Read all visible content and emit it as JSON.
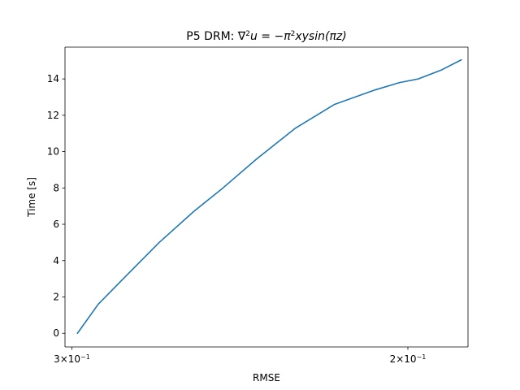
{
  "chart_data": {
    "type": "line",
    "title": "P5 DRM: ∇²u = −π²xysin(πz)",
    "title_parts": {
      "prefix": "P5 DRM: ∇",
      "sup1": "2",
      "mid": "u = −π",
      "sup2": "2",
      "suffix": "xysin(πz)"
    },
    "xlabel": "RMSE",
    "ylabel": "Time [s]",
    "x_scale": "log",
    "x_scale_direction": "inverted",
    "xlim": [
      0.3025,
      0.186
    ],
    "ylim": [
      -0.75,
      15.75
    ],
    "x_ticks": [
      {
        "value": 0.3,
        "base": "3",
        "exp": "−1"
      },
      {
        "value": 0.2,
        "base": "2",
        "exp": "−1"
      }
    ],
    "y_ticks": [
      0,
      2,
      4,
      6,
      8,
      10,
      12,
      14
    ],
    "grid": false,
    "line_color": "#1f77b4",
    "series": [
      {
        "x": [
          0.298,
          0.2906,
          0.282,
          0.27,
          0.259,
          0.25,
          0.24,
          0.229,
          0.2185,
          0.208,
          0.202,
          0.1975,
          0.192,
          0.1875
        ],
        "y": [
          0.0,
          1.6,
          3.0,
          5.0,
          6.7,
          8.0,
          9.6,
          11.3,
          12.6,
          13.4,
          13.8,
          14.0,
          14.5,
          15.05
        ]
      }
    ]
  }
}
